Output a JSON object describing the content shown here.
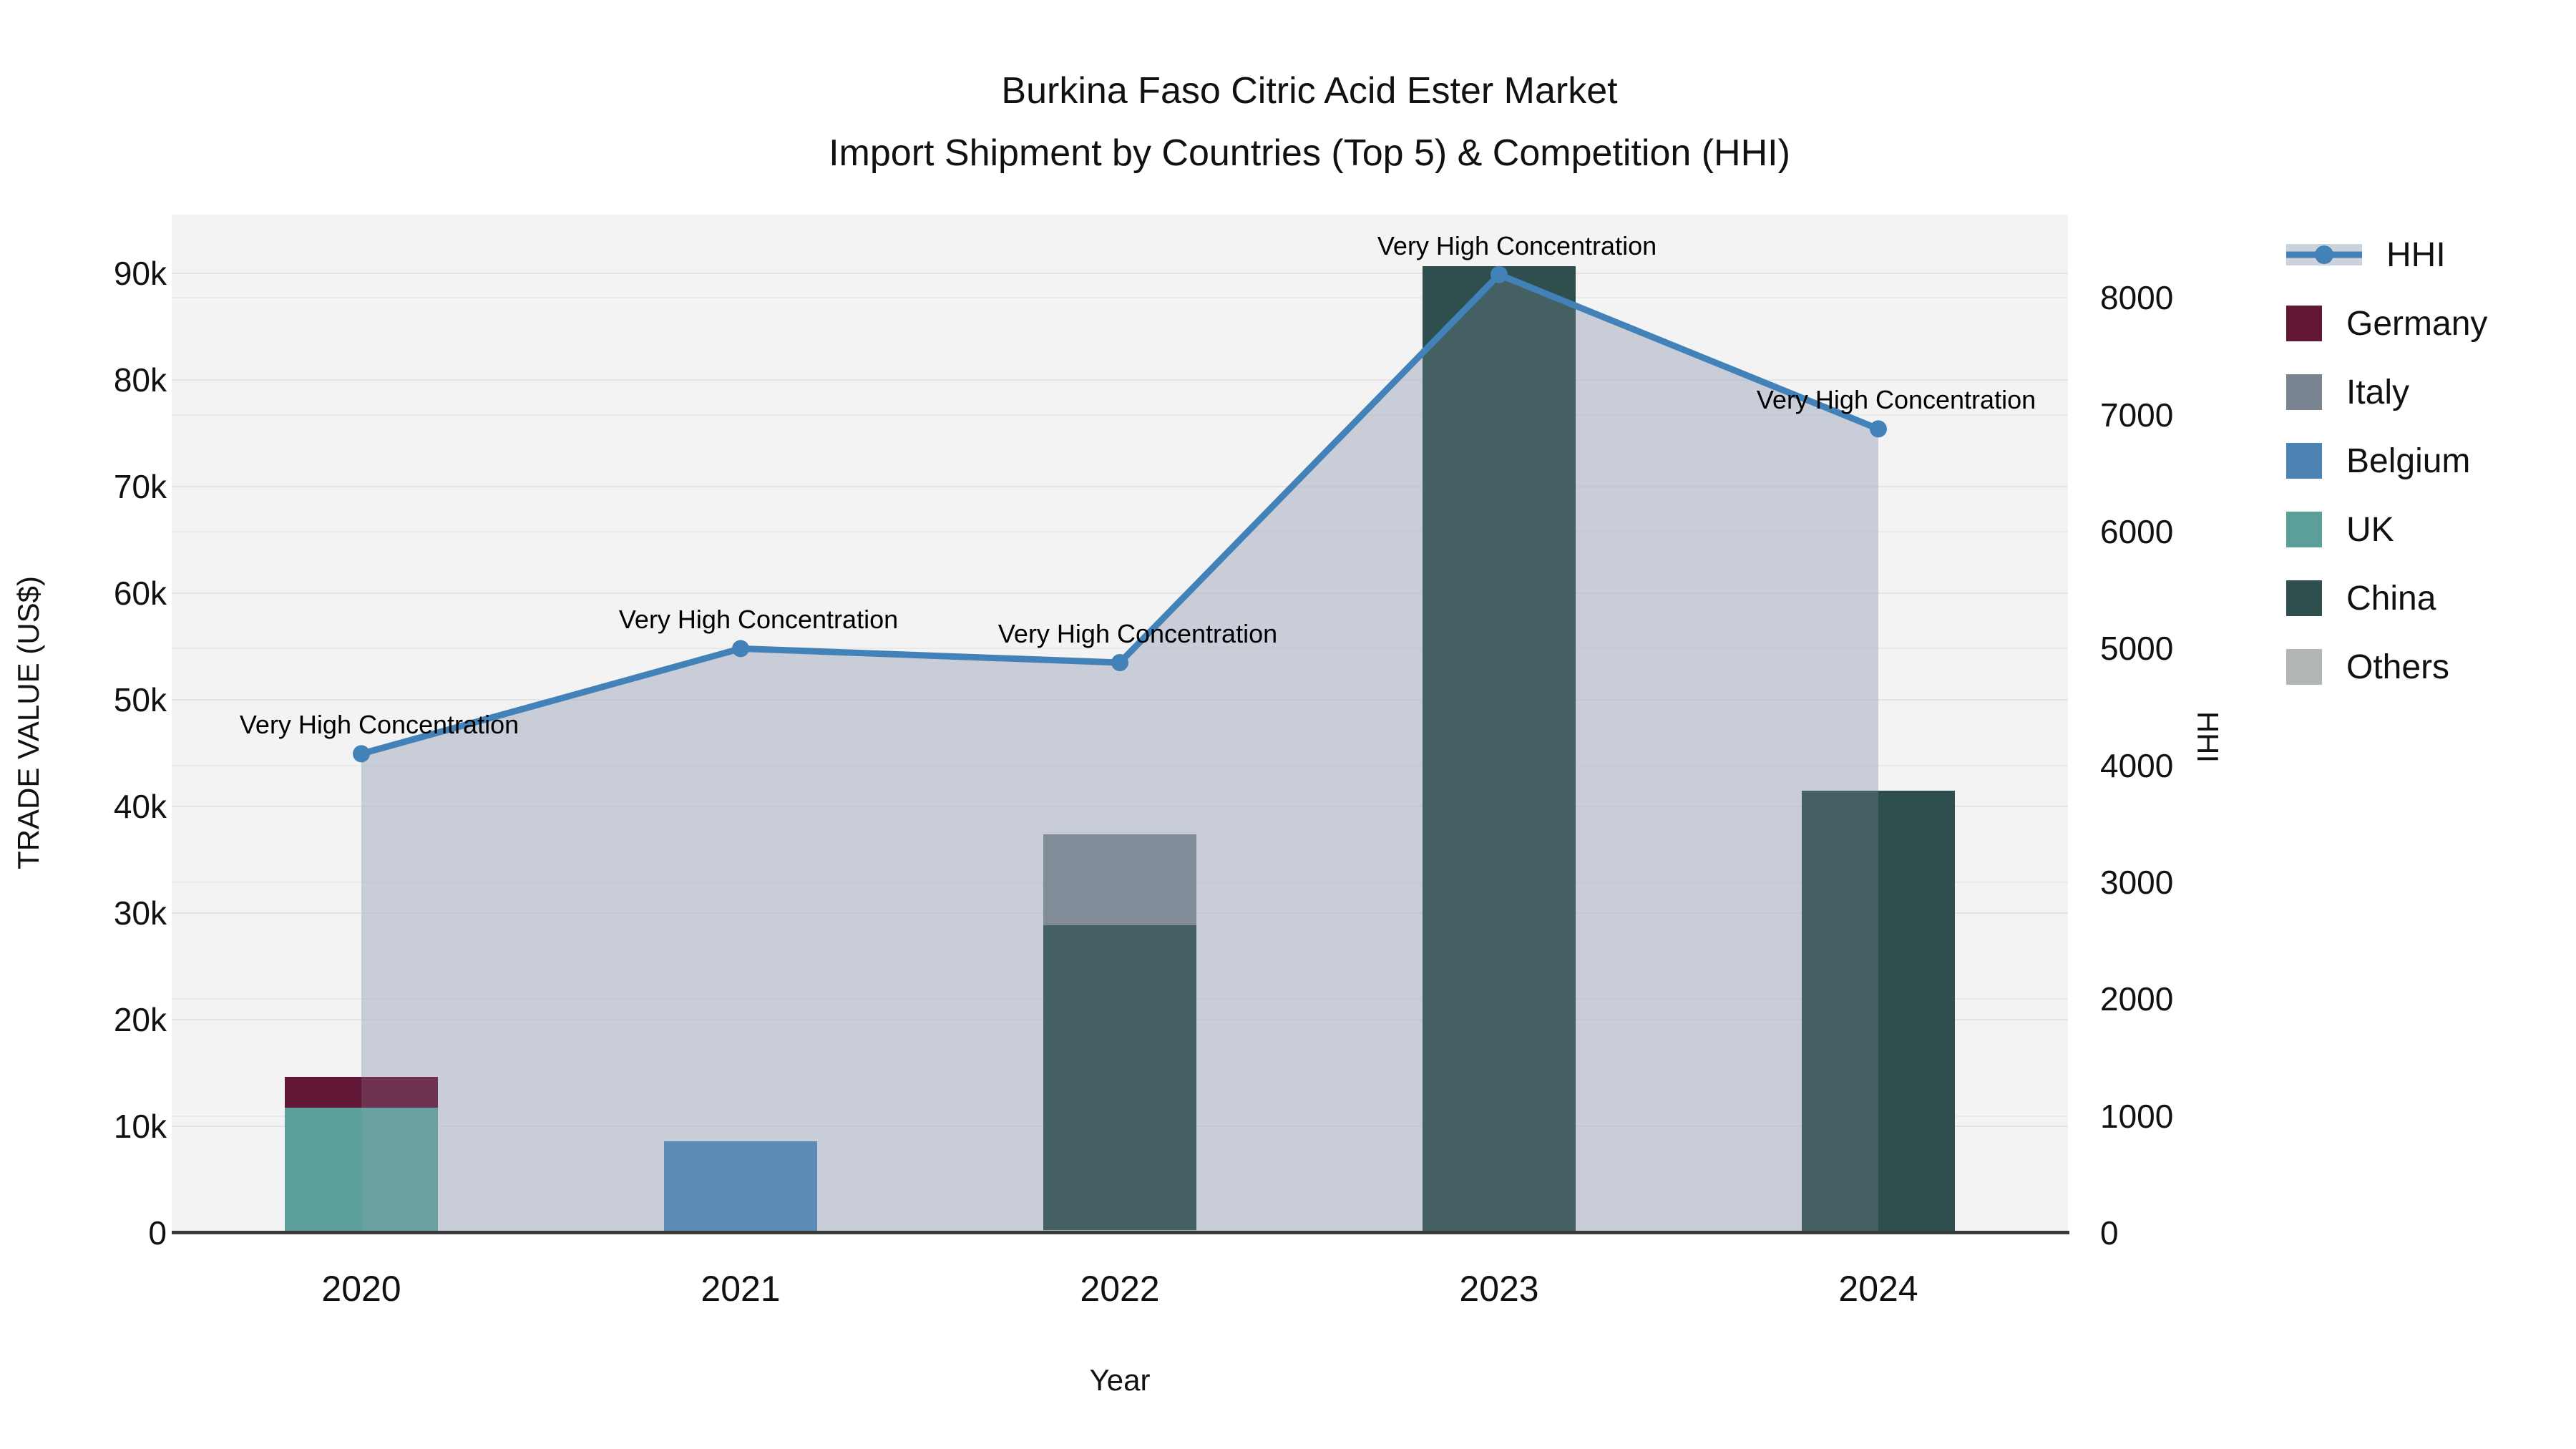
{
  "title": {
    "line1": "Burkina Faso Citric Acid Ester Market",
    "line2": "Import Shipment by Countries (Top 5) & Competition (HHI)"
  },
  "chart_data": {
    "type": "bar+line",
    "categories": [
      "2020",
      "2021",
      "2022",
      "2023",
      "2024"
    ],
    "xlabel": "Year",
    "ylabel_left": "TRADE VALUE (US$)",
    "ylabel_right": "HHI",
    "ylim_left": [
      0,
      95500
    ],
    "ylim_right": [
      0,
      8713
    ],
    "grid": true,
    "left_ticks": [
      {
        "value": 0,
        "label": "0"
      },
      {
        "value": 10000,
        "label": "10k"
      },
      {
        "value": 20000,
        "label": "20k"
      },
      {
        "value": 30000,
        "label": "30k"
      },
      {
        "value": 40000,
        "label": "40k"
      },
      {
        "value": 50000,
        "label": "50k"
      },
      {
        "value": 60000,
        "label": "60k"
      },
      {
        "value": 70000,
        "label": "70k"
      },
      {
        "value": 80000,
        "label": "80k"
      },
      {
        "value": 90000,
        "label": "90k"
      }
    ],
    "right_ticks": [
      {
        "value": 0,
        "label": "0"
      },
      {
        "value": 1000,
        "label": "1000"
      },
      {
        "value": 2000,
        "label": "2000"
      },
      {
        "value": 3000,
        "label": "3000"
      },
      {
        "value": 4000,
        "label": "4000"
      },
      {
        "value": 5000,
        "label": "5000"
      },
      {
        "value": 6000,
        "label": "6000"
      },
      {
        "value": 7000,
        "label": "7000"
      },
      {
        "value": 8000,
        "label": "8000"
      }
    ],
    "bar_series": [
      {
        "name": "Others",
        "color": "#b3b6b6",
        "values": [
          150,
          0,
          250,
          0,
          0
        ]
      },
      {
        "name": "UK",
        "color": "#5c9e9a",
        "values": [
          11600,
          0,
          0,
          0,
          0
        ]
      },
      {
        "name": "China",
        "color": "#2f4f4f",
        "values": [
          0,
          0,
          28600,
          90700,
          41500
        ]
      },
      {
        "name": "Belgium",
        "color": "#4d83b3",
        "values": [
          0,
          8600,
          0,
          0,
          0
        ]
      },
      {
        "name": "Italy",
        "color": "#7a8491",
        "values": [
          0,
          0,
          8500,
          0,
          0
        ]
      },
      {
        "name": "Germany",
        "color": "#621737",
        "values": [
          2900,
          0,
          0,
          0,
          0
        ]
      }
    ],
    "line_series": {
      "name": "HHI",
      "color": "#4282b8",
      "area_rgb": "167,176,195",
      "values": [
        4100,
        5000,
        4880,
        8200,
        6880
      ]
    },
    "annotations": [
      "Very High Concentration",
      "Very High Concentration",
      "Very High Concentration",
      "Very High Concentration",
      "Very High Concentration"
    ],
    "legend": [
      {
        "name": "HHI",
        "type": "line",
        "color": "#4282b8",
        "band": "#ccd2db"
      },
      {
        "name": "Germany",
        "type": "square",
        "color": "#621737"
      },
      {
        "name": "Italy",
        "type": "square",
        "color": "#7a8491"
      },
      {
        "name": "Belgium",
        "type": "square",
        "color": "#4d83b3"
      },
      {
        "name": "UK",
        "type": "square",
        "color": "#5c9e9a"
      },
      {
        "name": "China",
        "type": "square",
        "color": "#2f4f4f"
      },
      {
        "name": "Others",
        "type": "square",
        "color": "#b3b6b6"
      }
    ]
  }
}
